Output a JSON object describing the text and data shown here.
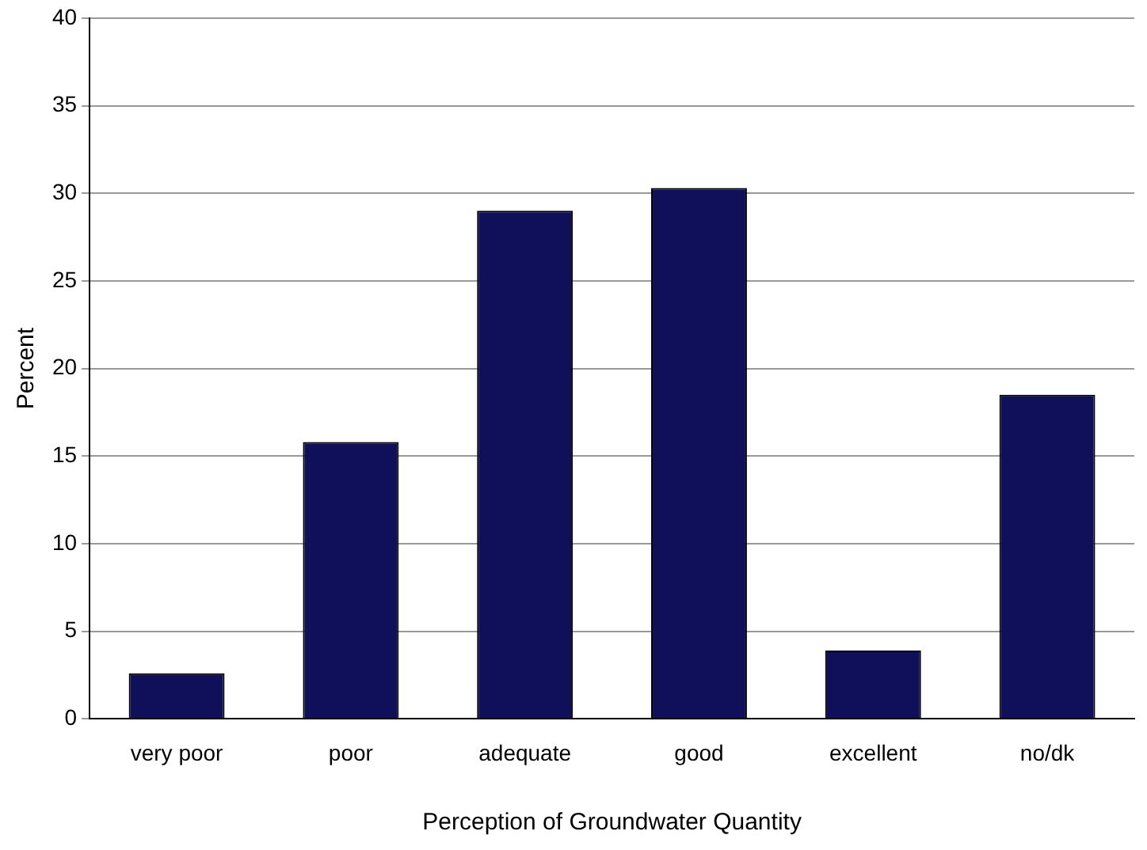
{
  "chart_data": {
    "type": "bar",
    "xlabel": "Perception of Groundwater Quantity",
    "ylabel": "Percent",
    "categories": [
      "very poor",
      "poor",
      "adequate",
      "good",
      "excellent",
      "no/dk"
    ],
    "values": [
      2.6,
      15.8,
      29.0,
      30.3,
      3.9,
      18.5
    ],
    "color": "#10105a",
    "ylim": [
      0,
      40
    ],
    "yticks": [
      0,
      5,
      10,
      15,
      20,
      25,
      30,
      35,
      40
    ],
    "grid": "y",
    "legend": false
  }
}
